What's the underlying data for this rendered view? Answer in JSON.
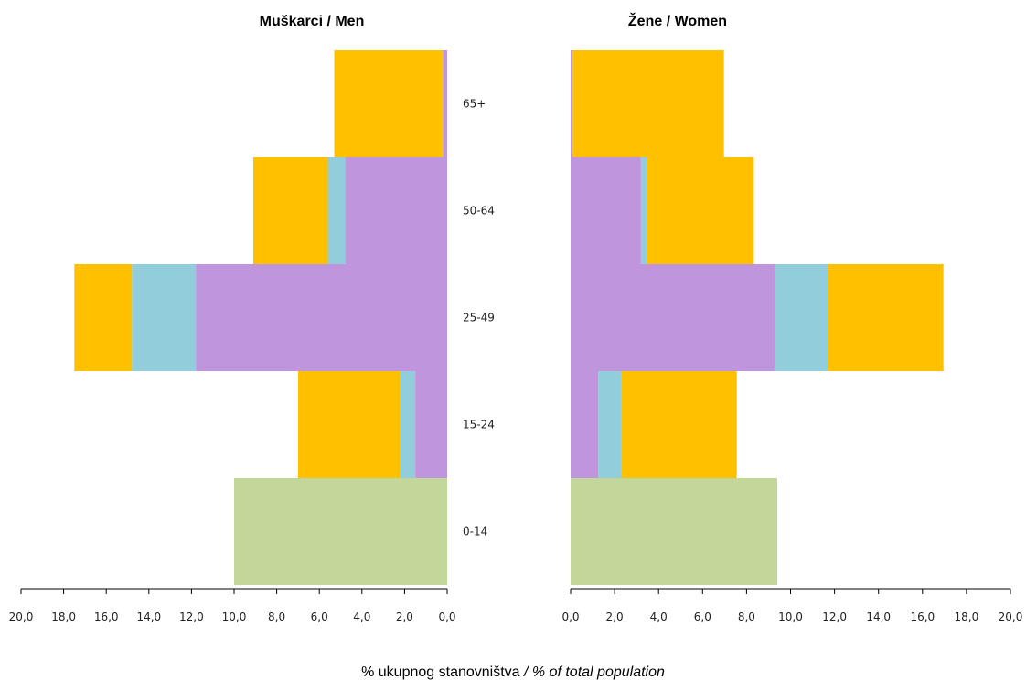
{
  "chart_data": [
    {
      "type": "bar",
      "orientation": "horizontal",
      "stacked": true,
      "title": "Muškarci / Men",
      "categories": [
        "0-14",
        "15-24",
        "25-49",
        "50-64",
        "65+"
      ],
      "series": [
        {
          "color": "#c4d79b",
          "values": [
            10.0,
            0,
            0,
            0,
            0
          ]
        },
        {
          "color": "#bf96de",
          "values": [
            0,
            1.5,
            11.8,
            4.8,
            0.2
          ]
        },
        {
          "color": "#92cddc",
          "values": [
            0,
            0.7,
            3.0,
            0.8,
            0
          ]
        },
        {
          "color": "#ffc000",
          "values": [
            0,
            4.8,
            2.7,
            3.5,
            5.1
          ]
        }
      ],
      "xlim": [
        20,
        0
      ],
      "xticks": [
        "20,0",
        "18,0",
        "16,0",
        "14,0",
        "12,0",
        "10,0",
        "8,0",
        "6,0",
        "4,0",
        "2,0",
        "0,0"
      ],
      "grid": false
    },
    {
      "type": "bar",
      "orientation": "horizontal",
      "stacked": true,
      "title": "Žene / Women",
      "categories": [
        "0-14",
        "15-24",
        "25-49",
        "50-64",
        "65+"
      ],
      "series": [
        {
          "color": "#c4d79b",
          "values": [
            9.7,
            0,
            0,
            0,
            0
          ]
        },
        {
          "color": "#bf96de",
          "values": [
            0,
            1.3,
            9.6,
            3.3,
            0.1
          ]
        },
        {
          "color": "#92cddc",
          "values": [
            0,
            1.1,
            2.5,
            0.3,
            0
          ]
        },
        {
          "color": "#ffc000",
          "values": [
            0,
            5.4,
            5.4,
            5.0,
            7.1
          ]
        }
      ],
      "xlim": [
        0,
        20
      ],
      "xticks": [
        "0,0",
        "2,0",
        "4,0",
        "6,0",
        "8,0",
        "10,0",
        "12,0",
        "14,0",
        "16,0",
        "18,0",
        "20,0"
      ],
      "grid": false
    }
  ],
  "xlabel": {
    "main": "% ukupnog stanovništva",
    "italic": " / % of total population"
  }
}
